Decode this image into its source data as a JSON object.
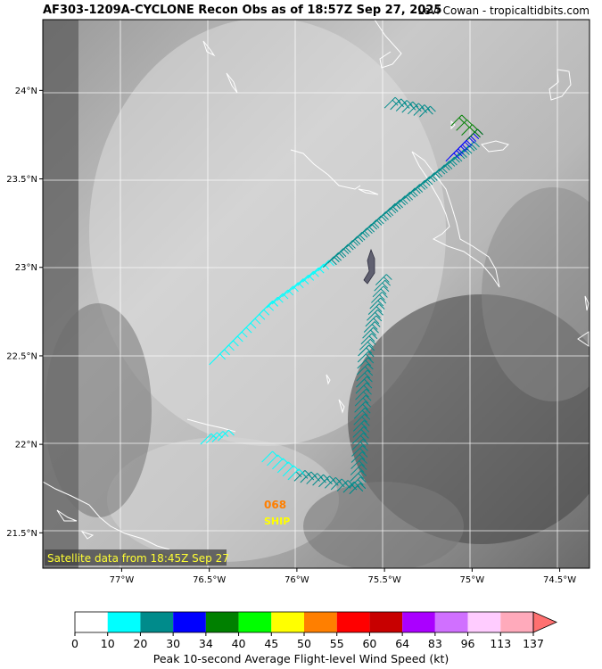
{
  "header": {
    "title": "AF303-1209A-CYCLONE Recon Obs as of 18:57Z Sep 27, 2025",
    "credit": "Levi Cowan - tropicaltidbits.com"
  },
  "map": {
    "lat_range": [
      21.3,
      24.4
    ],
    "lon_range": [
      -77.45,
      -74.33
    ],
    "lat_ticks": [
      {
        "value": 24.0,
        "label": "24°N"
      },
      {
        "value": 23.5,
        "label": "23.5°N"
      },
      {
        "value": 23.0,
        "label": "23°N"
      },
      {
        "value": 22.5,
        "label": "22.5°N"
      },
      {
        "value": 22.0,
        "label": "22°N"
      },
      {
        "value": 21.5,
        "label": "21.5°N"
      }
    ],
    "lon_ticks": [
      {
        "value": -77.0,
        "label": "77°W"
      },
      {
        "value": -76.5,
        "label": "76.5°W"
      },
      {
        "value": -76.0,
        "label": "76°W"
      },
      {
        "value": -75.5,
        "label": "75.5°W"
      },
      {
        "value": -75.0,
        "label": "75°W"
      },
      {
        "value": -74.5,
        "label": "74.5°W"
      }
    ],
    "grid": true,
    "satellite_label": "Satellite data from 18:45Z Sep 27",
    "ship_obs": {
      "value": "068",
      "label": "SHIP",
      "lat": 21.65,
      "lon": -76.1,
      "value_color": "#ff7f00",
      "label_color": "#ffff00"
    },
    "flight_track": {
      "description_colors": {
        "light_wind": "#00ffff",
        "moderate_wind": "#008b8b",
        "strong_wind": "#0000ff",
        "peak_wind": "#008000"
      },
      "segments": [
        {
          "from": [
            22.0,
            -76.55
          ],
          "to": [
            22.02,
            -76.45
          ],
          "kt": 12
        },
        {
          "from": [
            22.45,
            -76.5
          ],
          "to": [
            22.75,
            -76.2
          ],
          "kt": 15
        },
        {
          "from": [
            22.75,
            -76.2
          ],
          "to": [
            23.0,
            -75.85
          ],
          "kt": 18
        },
        {
          "from": [
            23.0,
            -75.85
          ],
          "to": [
            23.3,
            -75.5
          ],
          "kt": 24
        },
        {
          "from": [
            23.3,
            -75.5
          ],
          "to": [
            23.65,
            -75.05
          ],
          "kt": 28
        },
        {
          "from": [
            23.6,
            -75.15
          ],
          "to": [
            23.72,
            -75.03
          ],
          "kt": 32
        },
        {
          "from": [
            23.72,
            -75.03
          ],
          "to": [
            23.8,
            -75.12
          ],
          "kt": 36
        },
        {
          "from": [
            23.85,
            -75.3
          ],
          "to": [
            23.9,
            -75.5
          ],
          "kt": 25
        },
        {
          "from": [
            22.9,
            -75.55
          ],
          "to": [
            22.5,
            -75.65
          ],
          "kt": 26
        },
        {
          "from": [
            22.5,
            -75.65
          ],
          "to": [
            21.72,
            -75.7
          ],
          "kt": 22
        },
        {
          "from": [
            21.72,
            -75.7
          ],
          "to": [
            21.8,
            -76.05
          ],
          "kt": 21
        },
        {
          "from": [
            21.8,
            -76.05
          ],
          "to": [
            21.9,
            -76.2
          ],
          "kt": 14
        }
      ]
    }
  },
  "colorbar": {
    "title": "Peak 10-second Average Flight-level Wind Speed (kt)",
    "bounds": [
      "0",
      "10",
      "20",
      "30",
      "34",
      "40",
      "45",
      "50",
      "55",
      "60",
      "64",
      "83",
      "96",
      "113",
      "137"
    ],
    "colors": [
      "#ffffff",
      "#00ffff",
      "#008b8b",
      "#0000ff",
      "#008000",
      "#00ff00",
      "#ffff00",
      "#ff7f00",
      "#ff0000",
      "#c80000",
      "#aa00ff",
      "#d070ff",
      "#ffccff",
      "#ffaabb"
    ],
    "extend_color": "#ff7070"
  }
}
